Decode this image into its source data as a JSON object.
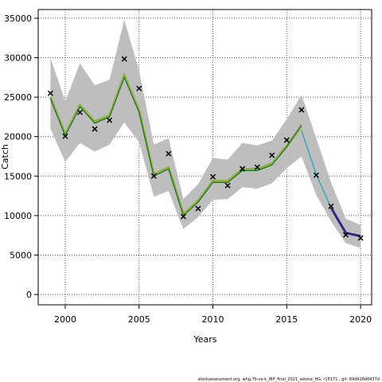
{
  "chart_data": {
    "type": "line",
    "x_label": "Years",
    "y_label": "Catch",
    "footer": "stockassessment.org, whg.7b-ce-k_IBP_final_2021_advice_HG, r15171 , git: 69d926d0437d",
    "x": [
      1999,
      2000,
      2001,
      2002,
      2003,
      2004,
      2005,
      2006,
      2007,
      2008,
      2009,
      2010,
      2011,
      2012,
      2013,
      2014,
      2015,
      2016,
      2017,
      2018,
      2019,
      2020
    ],
    "band": {
      "color": "#bebebe",
      "upper": [
        30000,
        24500,
        29300,
        26500,
        27200,
        34800,
        28400,
        19000,
        19800,
        12100,
        14000,
        17300,
        17100,
        19200,
        18900,
        19500,
        22200,
        25300,
        19800,
        14200,
        9600,
        8800
      ],
      "lower": [
        21000,
        16800,
        19200,
        18100,
        19000,
        21800,
        19300,
        12400,
        13100,
        8300,
        9800,
        12000,
        12100,
        13600,
        13400,
        14100,
        16000,
        17500,
        12600,
        9300,
        6500,
        5900
      ]
    },
    "series": [
      {
        "color": "#8db33a",
        "width": 3,
        "values": [
          25000,
          20300,
          24000,
          21900,
          22700,
          27800,
          23300,
          15200,
          16100,
          10200,
          11900,
          14400,
          14400,
          15900,
          15900,
          16600,
          18800,
          21300,
          null,
          null,
          null,
          null
        ]
      },
      {
        "color": "#1e6b3c",
        "width": 1.2,
        "values": [
          24800,
          20100,
          23800,
          21700,
          22500,
          27500,
          23100,
          15000,
          15900,
          10000,
          11700,
          14200,
          14200,
          15700,
          15700,
          16400,
          18700,
          21500,
          null,
          null,
          null,
          null
        ]
      },
      {
        "color": "#1fa0c8",
        "width": 1.2,
        "values": [
          null,
          null,
          null,
          null,
          null,
          null,
          null,
          null,
          null,
          null,
          null,
          null,
          null,
          null,
          null,
          null,
          null,
          20800,
          15200,
          11000,
          7800,
          null
        ]
      },
      {
        "color": "#2b2a80",
        "width": 3,
        "values": [
          null,
          null,
          null,
          null,
          null,
          null,
          null,
          null,
          null,
          null,
          null,
          null,
          null,
          null,
          null,
          null,
          null,
          null,
          null,
          11000,
          7800,
          7400
        ]
      }
    ],
    "observed": {
      "color": "#000000",
      "values": [
        25500,
        20060,
        23080,
        20970,
        22080,
        29840,
        26110,
        15020,
        17840,
        9880,
        10890,
        14920,
        13810,
        15930,
        16130,
        17640,
        19560,
        23390,
        15120,
        11190,
        7560,
        7160
      ]
    },
    "xlim": [
      1998.17,
      2020.75
    ],
    "ylim": [
      -1300,
      36100
    ],
    "xticks": [
      2000,
      2005,
      2010,
      2015,
      2020
    ],
    "yticks": [
      0,
      5000,
      10000,
      15000,
      20000,
      25000,
      30000,
      35000
    ],
    "grid": true
  }
}
